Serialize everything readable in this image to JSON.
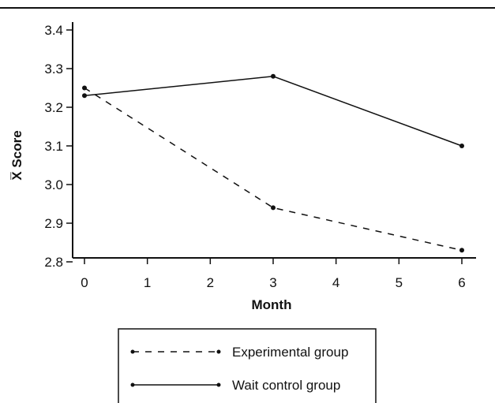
{
  "chart_data": {
    "type": "line",
    "xlabel": "Month",
    "ylabel": "X̅ Score",
    "xlim": [
      0,
      6
    ],
    "ylim": [
      2.8,
      3.4
    ],
    "x_ticks": [
      0,
      1,
      2,
      3,
      4,
      5,
      6
    ],
    "y_ticks": [
      2.8,
      2.9,
      3.0,
      3.1,
      3.2,
      3.3,
      3.4
    ],
    "y_tick_labels": [
      "2.8",
      "2.9",
      "3.0",
      "3.1",
      "3.2",
      "3.3",
      "3.4"
    ],
    "grid": false,
    "legend_position": "bottom",
    "series": [
      {
        "name": "Experimental group",
        "style": "dashed",
        "color": "#111111",
        "x": [
          0,
          3,
          6
        ],
        "y": [
          3.25,
          2.94,
          2.83
        ]
      },
      {
        "name": "Wait control group",
        "style": "solid",
        "color": "#111111",
        "x": [
          0,
          3,
          6
        ],
        "y": [
          3.23,
          3.28,
          3.1
        ]
      }
    ]
  }
}
